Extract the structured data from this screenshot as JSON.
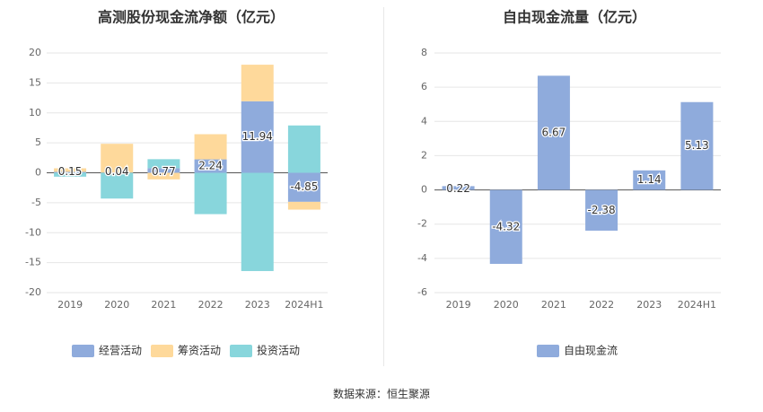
{
  "footer": {
    "source": "数据来源：恒生聚源"
  },
  "chart_data": [
    {
      "type": "bar",
      "stacked": true,
      "title": "高测股份现金流净额（亿元）",
      "categories": [
        "2019",
        "2020",
        "2021",
        "2022",
        "2023",
        "2024H1"
      ],
      "ylim": [
        -20,
        20
      ],
      "yticks": [
        -20,
        -15,
        -10,
        -5,
        0,
        5,
        10,
        15,
        20
      ],
      "grid": true,
      "legend_position": "bottom",
      "series": [
        {
          "name": "经营活动",
          "color": "#8fabdc",
          "values": [
            0.15,
            0.04,
            0.77,
            2.24,
            11.94,
            -4.85
          ]
        },
        {
          "name": "筹资活动",
          "color": "#fed99b",
          "values": [
            0.6,
            4.8,
            -1.1,
            4.2,
            6.1,
            -1.3
          ]
        },
        {
          "name": "投资活动",
          "color": "#88d6dc",
          "values": [
            -0.65,
            -4.3,
            1.5,
            -6.9,
            -16.4,
            7.9
          ]
        }
      ],
      "data_labels": [
        "0.15",
        "0.04",
        "0.77",
        "2.24",
        "11.94",
        "-4.85"
      ],
      "legend": [
        "经营活动",
        "筹资活动",
        "投资活动"
      ]
    },
    {
      "type": "bar",
      "title": "自由现金流量（亿元）",
      "categories": [
        "2019",
        "2020",
        "2021",
        "2022",
        "2023",
        "2024H1"
      ],
      "ylim": [
        -6,
        8
      ],
      "yticks": [
        -6,
        -4,
        -2,
        0,
        2,
        4,
        6,
        8
      ],
      "grid": true,
      "legend_position": "bottom",
      "series": [
        {
          "name": "自由现金流",
          "color": "#8fabdc",
          "values": [
            0.22,
            -4.32,
            6.67,
            -2.38,
            1.14,
            5.13
          ]
        }
      ],
      "data_labels": [
        "0.22",
        "-4.32",
        "6.67",
        "-2.38",
        "1.14",
        "5.13"
      ],
      "legend": [
        "自由现金流"
      ]
    }
  ]
}
